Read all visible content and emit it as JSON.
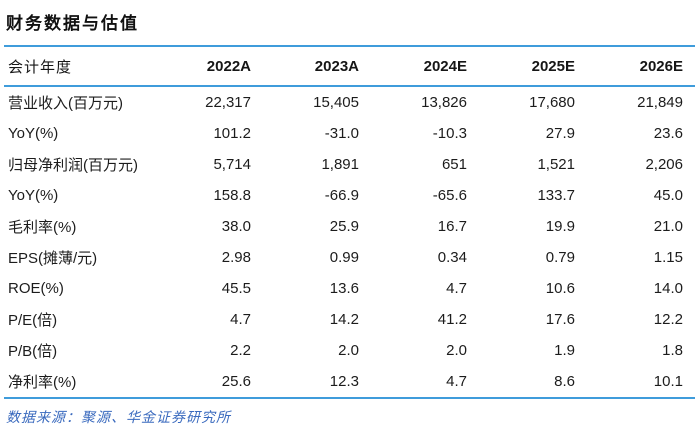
{
  "title": "财务数据与估值",
  "table": {
    "header": [
      "会计年度",
      "2022A",
      "2023A",
      "2024E",
      "2025E",
      "2026E"
    ],
    "rows": [
      {
        "label": "营业收入(百万元)",
        "values": [
          "22,317",
          "15,405",
          "13,826",
          "17,680",
          "21,849"
        ]
      },
      {
        "label": "YoY(%)",
        "values": [
          "101.2",
          "-31.0",
          "-10.3",
          "27.9",
          "23.6"
        ]
      },
      {
        "label": "归母净利润(百万元)",
        "values": [
          "5,714",
          "1,891",
          "651",
          "1,521",
          "2,206"
        ]
      },
      {
        "label": "YoY(%)",
        "values": [
          "158.8",
          "-66.9",
          "-65.6",
          "133.7",
          "45.0"
        ]
      },
      {
        "label": "毛利率(%)",
        "values": [
          "38.0",
          "25.9",
          "16.7",
          "19.9",
          "21.0"
        ]
      },
      {
        "label": "EPS(摊薄/元)",
        "values": [
          "2.98",
          "0.99",
          "0.34",
          "0.79",
          "1.15"
        ]
      },
      {
        "label": "ROE(%)",
        "values": [
          "45.5",
          "13.6",
          "4.7",
          "10.6",
          "14.0"
        ]
      },
      {
        "label": "P/E(倍)",
        "values": [
          "4.7",
          "14.2",
          "41.2",
          "17.6",
          "12.2"
        ]
      },
      {
        "label": "P/B(倍)",
        "values": [
          "2.2",
          "2.0",
          "2.0",
          "1.9",
          "1.8"
        ]
      },
      {
        "label": "净利率(%)",
        "values": [
          "25.6",
          "12.3",
          "4.7",
          "8.6",
          "10.1"
        ]
      }
    ]
  },
  "footer": {
    "source": "数据来源：聚源、华金证券研究所"
  },
  "colors": {
    "rule_line_blue": "#3f9cdb",
    "source_text_blue": "#3a6abe",
    "body_text": "#1c1c1c"
  }
}
